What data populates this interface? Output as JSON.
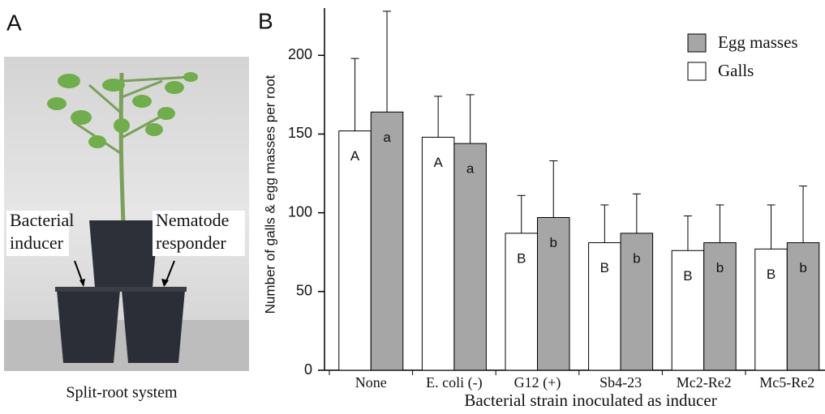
{
  "panel_a": {
    "label": "A",
    "left_label": [
      "Bacterial",
      "inducer"
    ],
    "right_label": [
      "Nematode",
      "responder"
    ],
    "caption": "Split-root system"
  },
  "chart_data": {
    "type": "bar",
    "panel_label": "B",
    "categories": [
      "None",
      "E. coli (-)",
      "G12 (+)",
      "Sb4-23",
      "Mc2-Re2",
      "Mc5-Re2"
    ],
    "series": [
      {
        "name": "Galls",
        "color": "#ffffff",
        "values": [
          152,
          148,
          87,
          81,
          76,
          77
        ],
        "errors": [
          46,
          26,
          24,
          24,
          22,
          28
        ],
        "letters": [
          "A",
          "A",
          "B",
          "B",
          "B",
          "B"
        ]
      },
      {
        "name": "Egg masses",
        "color": "#a6a6a6",
        "values": [
          164,
          144,
          97,
          87,
          81,
          81
        ],
        "errors": [
          64,
          31,
          36,
          25,
          24,
          36
        ],
        "letters": [
          "a",
          "a",
          "b",
          "b",
          "b",
          "b"
        ]
      }
    ],
    "ylim": [
      0,
      230
    ],
    "yticks": [
      0,
      50,
      100,
      150,
      200
    ],
    "xlabel": "Bacterial strain inoculated as inducer",
    "ylabel": "Number of galls & egg masses per root",
    "legend": "upper right",
    "grid": false
  }
}
